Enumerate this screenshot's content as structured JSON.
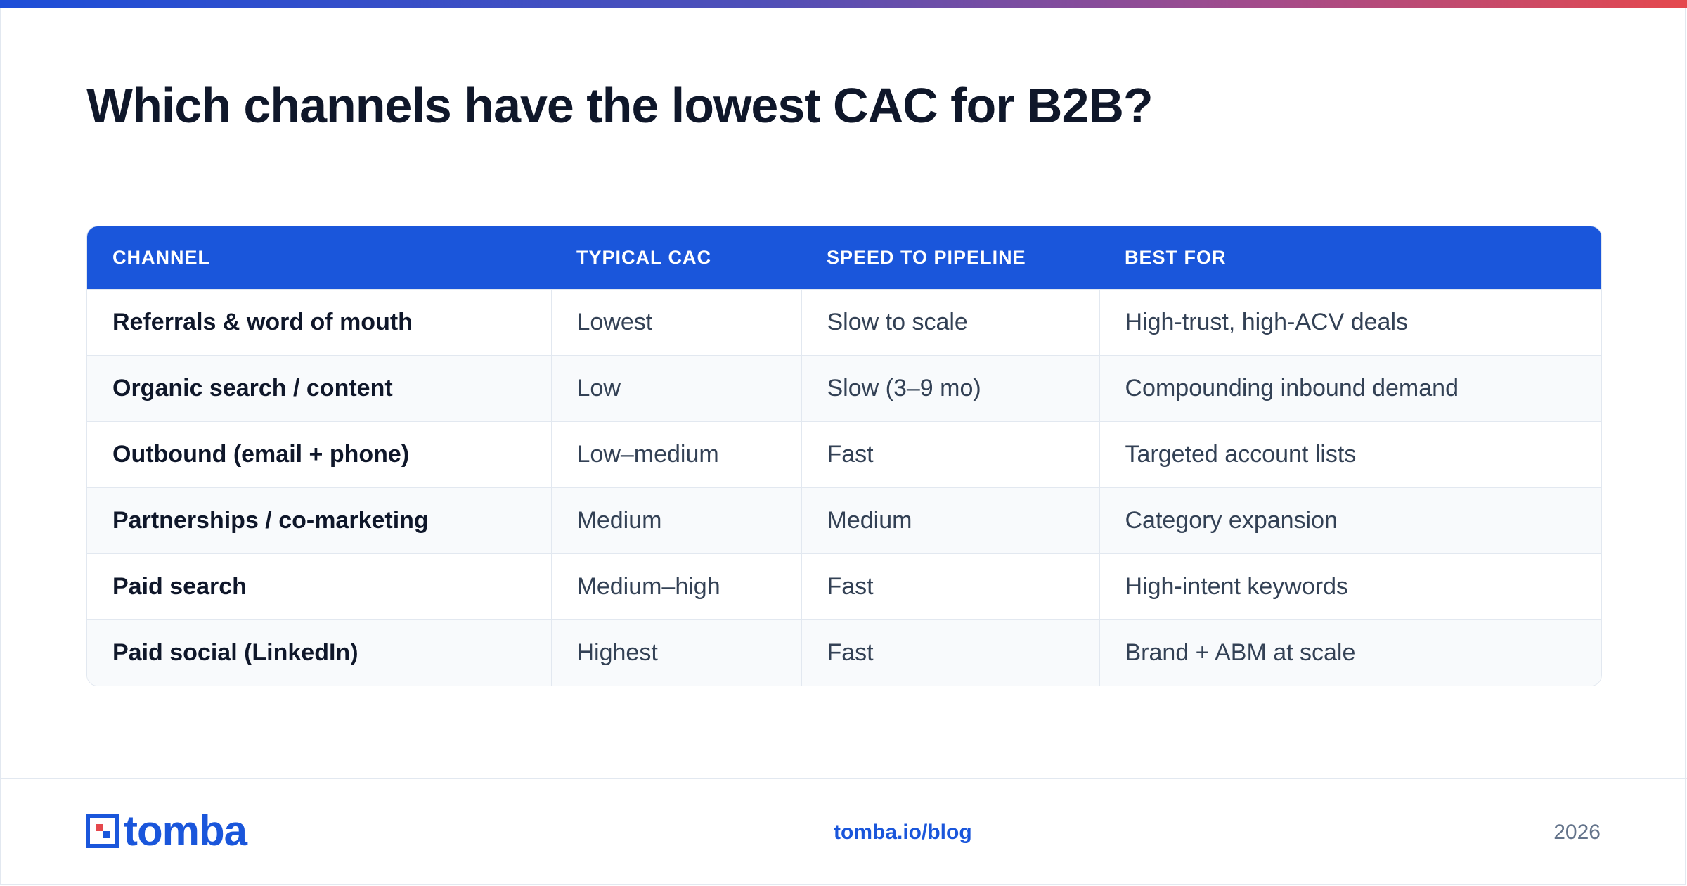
{
  "page": {
    "title": "Which channels have the lowest CAC for B2B?",
    "accent": "#1a56db",
    "gradient": [
      "#1d4ed8",
      "#e5484d"
    ]
  },
  "table": {
    "headers": [
      "CHANNEL",
      "TYPICAL CAC",
      "SPEED TO PIPELINE",
      "BEST FOR"
    ],
    "rows": [
      [
        "Referrals & word of mouth",
        "Lowest",
        "Slow to scale",
        "High-trust, high-ACV deals"
      ],
      [
        "Organic search / content",
        "Low",
        "Slow (3–9 mo)",
        "Compounding inbound demand"
      ],
      [
        "Outbound (email + phone)",
        "Low–medium",
        "Fast",
        "Targeted account lists"
      ],
      [
        "Partnerships / co-marketing",
        "Medium",
        "Medium",
        "Category expansion"
      ],
      [
        "Paid search",
        "Medium–high",
        "Fast",
        "High-intent keywords"
      ],
      [
        "Paid social (LinkedIn)",
        "Highest",
        "Fast",
        "Brand + ABM at scale"
      ]
    ]
  },
  "footer": {
    "logo_text": "tomba",
    "link": "tomba.io/blog",
    "year": "2026",
    "logo_icon": "tomba-logo-icon"
  }
}
